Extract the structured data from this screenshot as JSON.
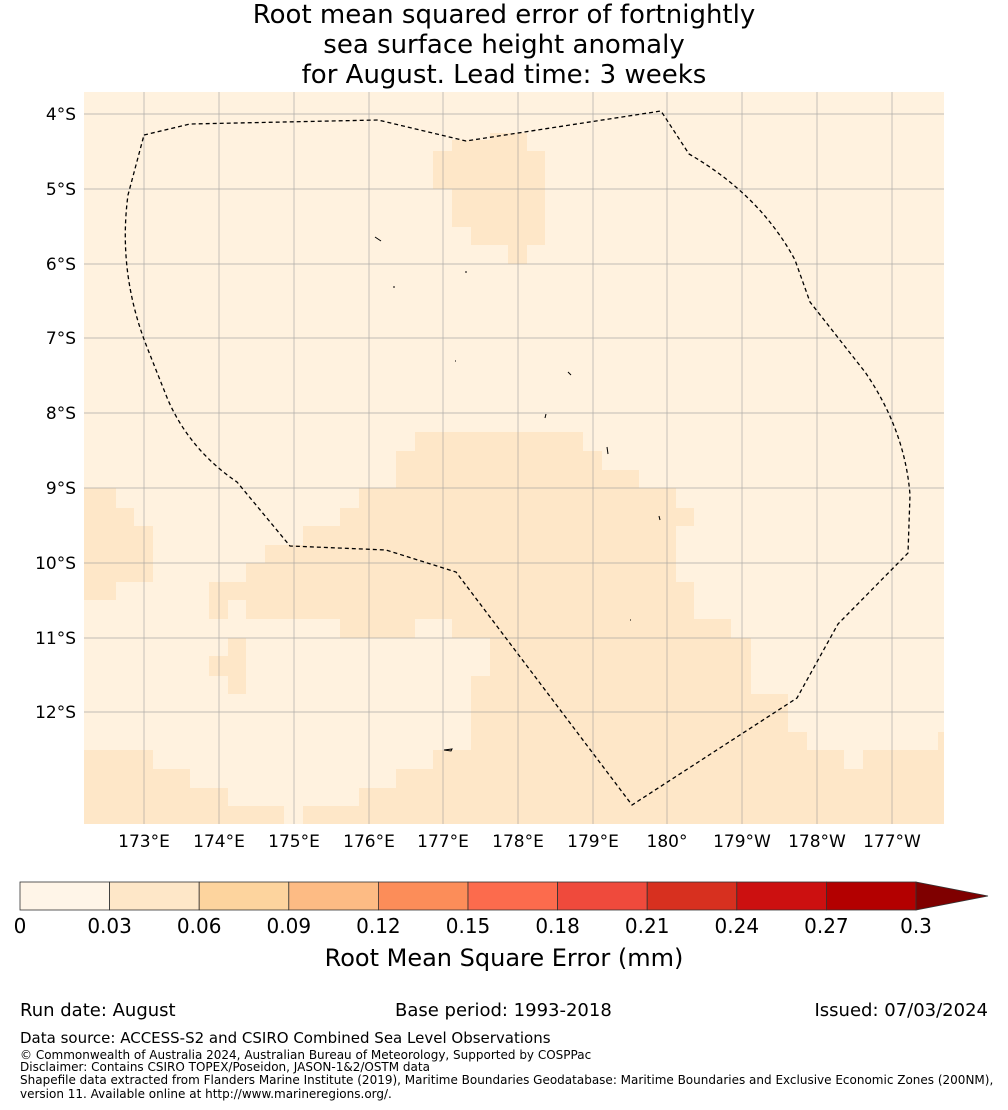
{
  "title": {
    "line1": "Root mean squared error of fortnightly",
    "line2": "sea surface height anomaly",
    "line3": "for August. Lead time: 3 weeks"
  },
  "map": {
    "lat_ticks": [
      "4°S",
      "5°S",
      "6°S",
      "7°S",
      "8°S",
      "9°S",
      "10°S",
      "11°S",
      "12°S"
    ],
    "lon_ticks": [
      "173°E",
      "174°E",
      "175°E",
      "176°E",
      "177°E",
      "178°E",
      "179°E",
      "180°",
      "179°W",
      "178°W",
      "177°W"
    ],
    "colors": {
      "band_0_003": "#fff2df",
      "band_003_006": "#fee7c8",
      "grid": "#999999",
      "boundary": "#000000"
    }
  },
  "colorbar": {
    "ticks": [
      "0",
      "0.03",
      "0.06",
      "0.09",
      "0.12",
      "0.15",
      "0.18",
      "0.21",
      "0.24",
      "0.27",
      "0.3"
    ],
    "colors": [
      "#fff5e8",
      "#fee7c8",
      "#fdd49e",
      "#fdbb84",
      "#fc8d59",
      "#fc6b4d",
      "#ef4a3c",
      "#d7301f",
      "#cc1010",
      "#b30000",
      "#7f0000"
    ],
    "label": "Root Mean Square Error (mm)"
  },
  "meta": {
    "run_date": "Run date: August",
    "base_period": "Base period: 1993-2018",
    "issued": "Issued: 07/03/2024"
  },
  "footer": {
    "data_source": "Data source: ACCESS-S2 and CSIRO Combined Sea Level Observations",
    "copyright": "© Commonwealth of Australia 2024, Australian Bureau of Meteorology, Supported by COSPPac",
    "disclaimer": "Disclaimer: Contains CSIRO TOPEX/Poseidon, JASON-1&2/OSTM data",
    "shapefile_line1": "Shapefile data extracted from Flanders Marine Institute (2019), Maritime Boundaries Geodatabase: Maritime Boundaries and Exclusive Economic Zones (200NM),",
    "shapefile_line2": "version 11. Available online at http://www.marineregions.org/."
  }
}
